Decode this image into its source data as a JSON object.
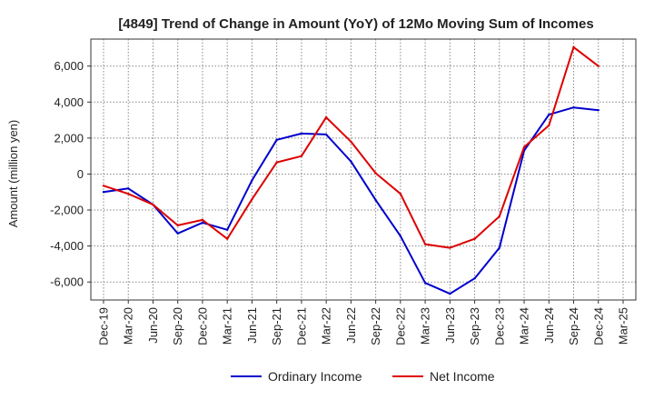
{
  "chart_data": {
    "type": "line",
    "title": "[4849]  Trend of Change in Amount (YoY) of 12Mo Moving Sum of Incomes",
    "ylabel": "Amount (million yen)",
    "xlabel": "",
    "categories": [
      "Dec-19",
      "Mar-20",
      "Jun-20",
      "Sep-20",
      "Dec-20",
      "Mar-21",
      "Jun-21",
      "Sep-21",
      "Dec-21",
      "Mar-22",
      "Jun-22",
      "Sep-22",
      "Dec-22",
      "Mar-23",
      "Jun-23",
      "Sep-23",
      "Dec-23",
      "Mar-24",
      "Jun-24",
      "Sep-24",
      "Dec-24",
      "Mar-25"
    ],
    "yticks": [
      -6000,
      -4000,
      -2000,
      0,
      2000,
      4000,
      6000
    ],
    "ytick_labels": [
      "-6,000",
      "-4,000",
      "-2,000",
      "0",
      "2,000",
      "4,000",
      "6,000"
    ],
    "ylim": [
      -7000,
      7500
    ],
    "grid": true,
    "legend_position": "bottom",
    "series": [
      {
        "name": "Ordinary Income",
        "color": "#0000cc",
        "values": [
          -1000,
          -800,
          -1700,
          -3300,
          -2700,
          -3100,
          -350,
          1900,
          2250,
          2200,
          700,
          -1450,
          -3450,
          -6050,
          -6650,
          -5800,
          -4100,
          1300,
          3300,
          3700,
          3550,
          null
        ]
      },
      {
        "name": "Net Income",
        "color": "#dd0000",
        "values": [
          -650,
          -1100,
          -1700,
          -2850,
          -2550,
          -3600,
          -1400,
          650,
          1000,
          3150,
          1800,
          50,
          -1100,
          -3900,
          -4100,
          -3600,
          -2350,
          1500,
          2700,
          7050,
          6000,
          null
        ]
      }
    ]
  }
}
